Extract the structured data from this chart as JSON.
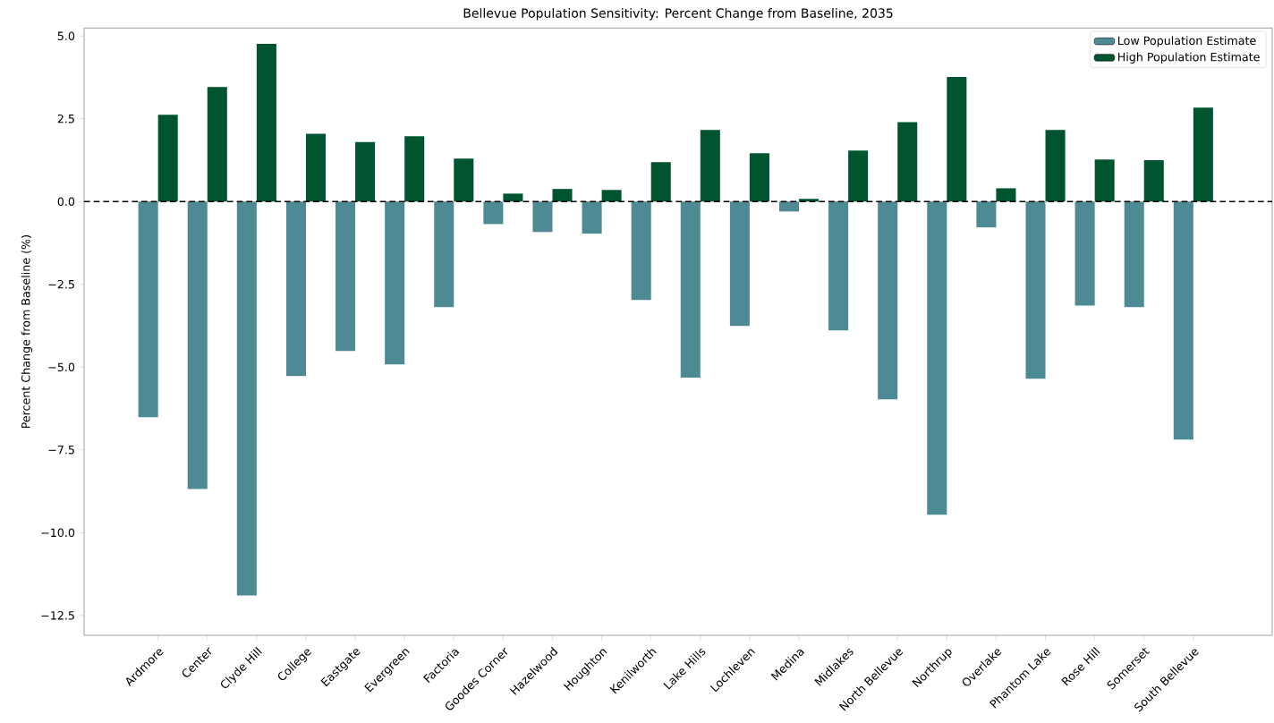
{
  "chart_data": {
    "type": "bar",
    "title": "Bellevue Population Sensitivity: Percent Change from Baseline, 2035",
    "ylabel": "Percent Change from Baseline (%)",
    "categories": [
      "Ardmore",
      "Center",
      "Clyde Hill",
      "College",
      "Eastgate",
      "Evergreen",
      "Factoria",
      "Goodes Corner",
      "Hazelwood",
      "Houghton",
      "Kenilworth",
      "Lake Hills",
      "Lochleven",
      "Medina",
      "Midlakes",
      "North Bellevue",
      "Northrup",
      "Overlake",
      "Phantom Lake",
      "Rose Hill",
      "Somerset",
      "South Bellevue"
    ],
    "series": [
      {
        "name": "Low Population Estimate",
        "color": "#4e8a93",
        "values": [
          -6.51,
          -8.68,
          -11.9,
          -5.27,
          -4.51,
          -4.92,
          -3.19,
          -0.68,
          -0.92,
          -0.97,
          -2.97,
          -5.32,
          -3.76,
          -0.3,
          -3.89,
          -5.97,
          -9.46,
          -0.78,
          -5.35,
          -3.14,
          -3.19,
          -7.19
        ]
      },
      {
        "name": "High Population Estimate",
        "color": "#00542f",
        "values": [
          2.62,
          3.46,
          4.76,
          2.05,
          1.8,
          1.97,
          1.3,
          0.24,
          0.38,
          0.35,
          1.19,
          2.16,
          1.46,
          0.08,
          1.54,
          2.4,
          3.76,
          0.4,
          2.16,
          1.27,
          1.25,
          2.84
        ]
      }
    ],
    "ylim": [
      -13.1,
      5.24
    ],
    "yticks": [
      {
        "value": -12.5,
        "label": "−12.5"
      },
      {
        "value": -10,
        "label": "−10.0"
      },
      {
        "value": -7.5,
        "label": "−7.5"
      },
      {
        "value": -5,
        "label": "−5.0"
      },
      {
        "value": -2.5,
        "label": "−2.5"
      },
      {
        "value": 0,
        "label": "0.0"
      },
      {
        "value": 2.5,
        "label": "2.5"
      },
      {
        "value": 5,
        "label": "5.0"
      }
    ],
    "ref_lines": [
      {
        "axis": "y",
        "value": 0,
        "color": "#000000",
        "line_style": "dashed"
      }
    ],
    "grid": false,
    "legend": "top right"
  }
}
